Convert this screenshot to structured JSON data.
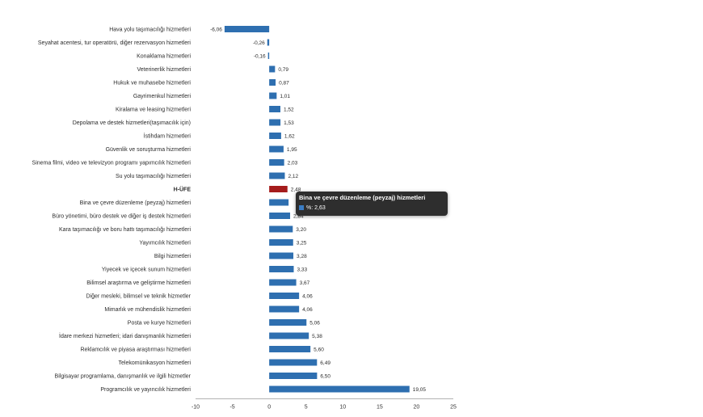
{
  "chart_data": {
    "type": "bar",
    "orientation": "horizontal",
    "title": "",
    "xlabel": "",
    "ylabel": "",
    "xlim": [
      -10,
      25
    ],
    "xticks": [
      -10,
      -5,
      0,
      5,
      10,
      15,
      20,
      25
    ],
    "categories": [
      "Hava yolu taşımacılığı hizmetleri",
      "Seyahat acentesi, tur operatörü, diğer rezervasyon hizmetleri",
      "Konaklama hizmetleri",
      "Veterinerlik hizmetleri",
      "Hukuk ve muhasebe hizmetleri",
      "Gayrimenkul hizmetleri",
      "Kiralama ve leasing hizmetleri",
      "Depolama ve destek hizmetleri(taşımacılık için)",
      "İstihdam hizmetleri",
      "Güvenlik ve soruşturma hizmetleri",
      "Sinema filmi, video ve televizyon programı yapımcılık hizmetleri",
      "Su yolu taşımacılığı hizmetleri",
      "H-ÜFE",
      "Bina ve çevre düzenleme (peyzaj) hizmetleri",
      "Büro yönetimi, büro destek ve diğer iş destek hizmetleri",
      "Kara taşımacılığı ve boru hattı taşımacılığı hizmetleri",
      "Yayımcılık hizmetleri",
      "Bilgi hizmetleri",
      "Yiyecek ve içecek sunum hizmetleri",
      "Bilimsel araştırma ve geliştirme hizmetleri",
      "Diğer mesleki, bilimsel ve teknik hizmetler",
      "Mimarlık ve mühendislik hizmetleri",
      "Posta ve kurye hizmetleri",
      "İdare merkezi hizmetleri; idari danışmanlık hizmetleri",
      "Reklamcılık ve piyasa araştırması hizmetleri",
      "Telekomünikasyon hizmetleri",
      "Bilgisayar programlama, danışmanlık ve ilgili hizmetler",
      "Programcılık ve yayıncılık hizmetleri"
    ],
    "values": [
      -6.06,
      -0.26,
      -0.16,
      0.79,
      0.87,
      1.01,
      1.52,
      1.53,
      1.62,
      1.95,
      2.03,
      2.12,
      2.48,
      2.63,
      2.84,
      3.2,
      3.25,
      3.28,
      3.33,
      3.67,
      4.06,
      4.06,
      5.06,
      5.38,
      5.6,
      6.49,
      6.5,
      19.05
    ],
    "value_labels": [
      "-6,06",
      "-0,26",
      "-0,16",
      "0,79",
      "0,87",
      "1,01",
      "1,52",
      "1,53",
      "1,62",
      "1,95",
      "2,03",
      "2,12",
      "2,48",
      "",
      "2,84",
      "3,20",
      "3,25",
      "3,28",
      "3,33",
      "3,67",
      "4,06",
      "4,06",
      "5,06",
      "5,38",
      "5,60",
      "6,49",
      "6,50",
      "19,05"
    ],
    "highlight_category": "H-ÜFE",
    "colors": {
      "default": "#2e6fb0",
      "highlight": "#a51c1c"
    }
  },
  "tooltip": {
    "title": "Bina ve çevre düzenleme (peyzaj) hizmetleri",
    "value_text": "%: 2,63"
  }
}
